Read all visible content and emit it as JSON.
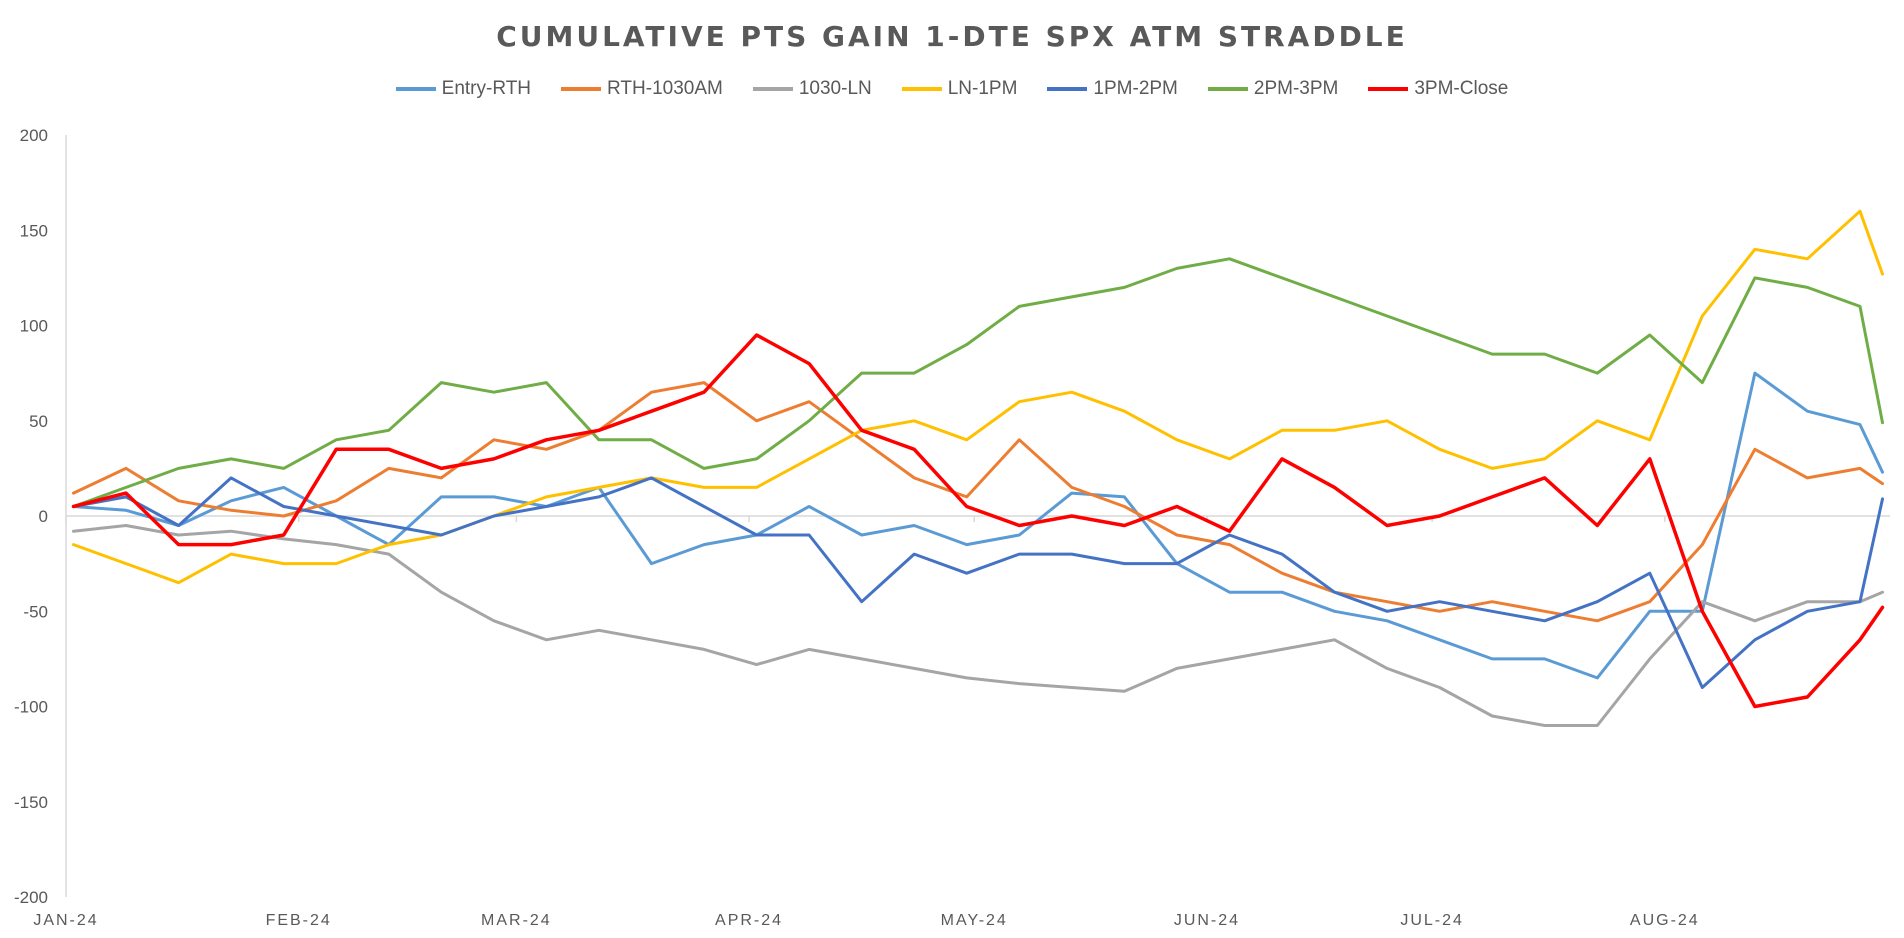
{
  "chart_data": {
    "type": "line",
    "title": "CUMULATIVE PTS GAIN 1-DTE SPX ATM STRADDLE",
    "xlabel": "",
    "ylabel": "",
    "ylim": [
      -200,
      200
    ],
    "yticks": [
      "200",
      "150",
      "100",
      "50",
      "0",
      "-50",
      "-100",
      "-150",
      "-200"
    ],
    "xticks": [
      "JAN-24",
      "FEB-24",
      "MAR-24",
      "APR-24",
      "MAY-24",
      "JUN-24",
      "JUL-24",
      "AUG-24"
    ],
    "grid": false,
    "legend_position": "top",
    "x": [
      "2024-01-02",
      "2024-01-09",
      "2024-01-16",
      "2024-01-23",
      "2024-01-30",
      "2024-02-06",
      "2024-02-13",
      "2024-02-20",
      "2024-02-27",
      "2024-03-05",
      "2024-03-12",
      "2024-03-19",
      "2024-03-26",
      "2024-04-02",
      "2024-04-09",
      "2024-04-16",
      "2024-04-23",
      "2024-04-30",
      "2024-05-07",
      "2024-05-14",
      "2024-05-21",
      "2024-05-28",
      "2024-06-04",
      "2024-06-11",
      "2024-06-18",
      "2024-06-25",
      "2024-07-02",
      "2024-07-09",
      "2024-07-16",
      "2024-07-23",
      "2024-07-30",
      "2024-08-06",
      "2024-08-13",
      "2024-08-20",
      "2024-08-27",
      "2024-08-30"
    ],
    "series": [
      {
        "name": "Entry-RTH",
        "color": "#5B9BD5",
        "values": [
          5,
          3,
          -5,
          8,
          15,
          0,
          -15,
          10,
          10,
          5,
          15,
          -25,
          -15,
          -10,
          5,
          -10,
          -5,
          -15,
          -10,
          12,
          10,
          -25,
          -40,
          -40,
          -50,
          -55,
          -65,
          -75,
          -75,
          -85,
          -50,
          -50,
          75,
          55,
          48,
          23
        ]
      },
      {
        "name": "RTH-1030AM",
        "color": "#ED7D31",
        "values": [
          12,
          25,
          8,
          3,
          0,
          8,
          25,
          20,
          40,
          35,
          45,
          65,
          70,
          50,
          60,
          40,
          20,
          10,
          40,
          15,
          5,
          -10,
          -15,
          -30,
          -40,
          -45,
          -50,
          -45,
          -50,
          -55,
          -45,
          -15,
          35,
          20,
          25,
          17
        ]
      },
      {
        "name": "1030-LN",
        "color": "#A5A5A5",
        "values": [
          -8,
          -5,
          -10,
          -8,
          -12,
          -15,
          -20,
          -40,
          -55,
          -65,
          -60,
          -65,
          -70,
          -78,
          -70,
          -75,
          -80,
          -85,
          -88,
          -90,
          -92,
          -80,
          -75,
          -70,
          -65,
          -80,
          -90,
          -105,
          -110,
          -110,
          -75,
          -45,
          -55,
          -45,
          -45,
          -40
        ]
      },
      {
        "name": "LN-1PM",
        "color": "#FFC000",
        "values": [
          -15,
          -25,
          -35,
          -20,
          -25,
          -25,
          -15,
          -10,
          0,
          10,
          15,
          20,
          15,
          15,
          30,
          45,
          50,
          40,
          60,
          65,
          55,
          40,
          30,
          45,
          45,
          50,
          35,
          25,
          30,
          50,
          40,
          105,
          140,
          135,
          160,
          127
        ]
      },
      {
        "name": "1PM-2PM",
        "color": "#4472C4",
        "values": [
          5,
          10,
          -5,
          20,
          5,
          0,
          -5,
          -10,
          0,
          5,
          10,
          20,
          5,
          -10,
          -10,
          -45,
          -20,
          -30,
          -20,
          -20,
          -25,
          -25,
          -10,
          -20,
          -40,
          -50,
          -45,
          -50,
          -55,
          -45,
          -30,
          -90,
          -65,
          -50,
          -45,
          9
        ]
      },
      {
        "name": "2PM-3PM",
        "color": "#70AD47",
        "values": [
          5,
          15,
          25,
          30,
          25,
          40,
          45,
          70,
          65,
          70,
          40,
          40,
          25,
          30,
          50,
          75,
          75,
          90,
          110,
          115,
          120,
          130,
          135,
          125,
          115,
          105,
          95,
          85,
          85,
          75,
          95,
          70,
          125,
          120,
          110,
          49
        ]
      },
      {
        "name": "3PM-Close",
        "color": "#FF0000",
        "values": [
          5,
          12,
          -15,
          -15,
          -10,
          35,
          35,
          25,
          30,
          40,
          45,
          55,
          65,
          95,
          80,
          45,
          35,
          5,
          -5,
          0,
          -5,
          5,
          -8,
          30,
          15,
          -5,
          0,
          10,
          20,
          -5,
          30,
          -50,
          -100,
          -95,
          -65,
          -48
        ]
      }
    ]
  }
}
